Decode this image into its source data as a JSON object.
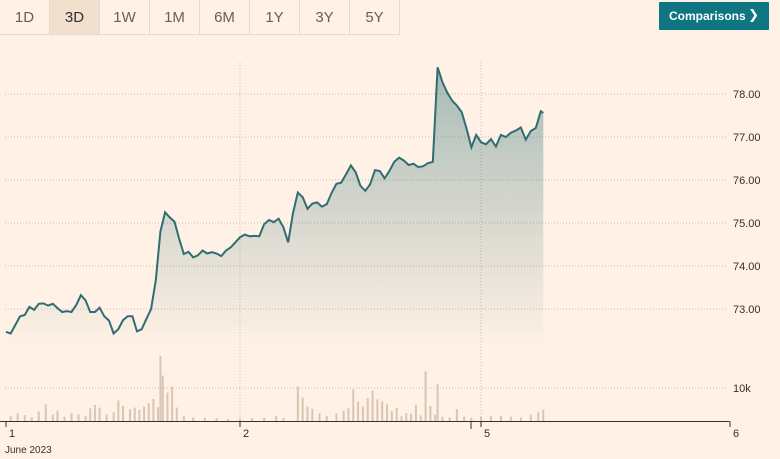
{
  "tabs": [
    {
      "label": "1D",
      "active": false
    },
    {
      "label": "3D",
      "active": true
    },
    {
      "label": "1W",
      "active": false
    },
    {
      "label": "1M",
      "active": false
    },
    {
      "label": "6M",
      "active": false
    },
    {
      "label": "1Y",
      "active": false
    },
    {
      "label": "3Y",
      "active": false
    },
    {
      "label": "5Y",
      "active": false
    }
  ],
  "comparisons_button": {
    "label": "Comparisons",
    "icon": "chevron-right-icon"
  },
  "colors": {
    "line": "#2e6e73",
    "volume": "#d8c6b2",
    "accent": "#0d7680"
  },
  "chart_data": {
    "type": "area",
    "yticks": [
      "78.00",
      "77.00",
      "76.00",
      "75.00",
      "74.00",
      "73.00"
    ],
    "ylim": [
      72.0,
      78.8
    ],
    "volume_tick": "10k",
    "xticks": [
      {
        "label": "1",
        "sublabel": "June 2023"
      },
      {
        "label": "2",
        "sublabel": ""
      },
      {
        "label": "5",
        "sublabel": ""
      },
      {
        "label": "6",
        "sublabel": ""
      }
    ],
    "price_points": [
      [
        0.0,
        72.47
      ],
      [
        0.02,
        72.43
      ],
      [
        0.04,
        72.63
      ],
      [
        0.06,
        72.83
      ],
      [
        0.08,
        72.86
      ],
      [
        0.1,
        73.05
      ],
      [
        0.12,
        72.98
      ],
      [
        0.14,
        73.12
      ],
      [
        0.16,
        73.13
      ],
      [
        0.18,
        73.08
      ],
      [
        0.2,
        73.12
      ],
      [
        0.22,
        73.02
      ],
      [
        0.24,
        72.93
      ],
      [
        0.26,
        72.95
      ],
      [
        0.28,
        72.93
      ],
      [
        0.3,
        73.09
      ],
      [
        0.32,
        73.32
      ],
      [
        0.34,
        73.2
      ],
      [
        0.36,
        72.93
      ],
      [
        0.38,
        72.93
      ],
      [
        0.4,
        73.03
      ],
      [
        0.42,
        72.83
      ],
      [
        0.44,
        72.73
      ],
      [
        0.46,
        72.43
      ],
      [
        0.48,
        72.53
      ],
      [
        0.5,
        72.74
      ],
      [
        0.52,
        72.83
      ],
      [
        0.54,
        72.83
      ],
      [
        0.56,
        72.48
      ],
      [
        0.58,
        72.53
      ],
      [
        0.6,
        72.77
      ],
      [
        0.62,
        73.0
      ],
      [
        0.64,
        73.67
      ],
      [
        0.66,
        74.8
      ],
      [
        0.68,
        75.25
      ],
      [
        0.7,
        75.13
      ],
      [
        0.72,
        75.03
      ],
      [
        0.74,
        74.63
      ],
      [
        0.76,
        74.28
      ],
      [
        0.78,
        74.33
      ],
      [
        0.8,
        74.2
      ],
      [
        0.82,
        74.25
      ],
      [
        0.84,
        74.36
      ],
      [
        0.86,
        74.29
      ],
      [
        0.88,
        74.32
      ],
      [
        0.9,
        74.29
      ],
      [
        0.92,
        74.23
      ],
      [
        0.94,
        74.36
      ],
      [
        0.96,
        74.43
      ],
      [
        0.98,
        74.55
      ],
      [
        1.0,
        74.67
      ],
      [
        1.02,
        74.73
      ],
      [
        1.04,
        74.69
      ],
      [
        1.06,
        74.7
      ],
      [
        1.08,
        74.69
      ],
      [
        1.1,
        74.97
      ],
      [
        1.12,
        75.07
      ],
      [
        1.14,
        75.02
      ],
      [
        1.16,
        75.1
      ],
      [
        1.18,
        74.9
      ],
      [
        1.2,
        74.55
      ],
      [
        1.22,
        75.23
      ],
      [
        1.24,
        75.71
      ],
      [
        1.26,
        75.6
      ],
      [
        1.28,
        75.33
      ],
      [
        1.3,
        75.45
      ],
      [
        1.32,
        75.48
      ],
      [
        1.34,
        75.38
      ],
      [
        1.36,
        75.44
      ],
      [
        1.38,
        75.7
      ],
      [
        1.4,
        75.91
      ],
      [
        1.42,
        75.94
      ],
      [
        1.44,
        76.13
      ],
      [
        1.46,
        76.34
      ],
      [
        1.48,
        76.18
      ],
      [
        1.5,
        75.86
      ],
      [
        1.52,
        75.75
      ],
      [
        1.54,
        75.9
      ],
      [
        1.56,
        76.23
      ],
      [
        1.58,
        76.21
      ],
      [
        1.6,
        76.04
      ],
      [
        1.62,
        76.21
      ],
      [
        1.64,
        76.42
      ],
      [
        1.66,
        76.52
      ],
      [
        1.68,
        76.45
      ],
      [
        1.7,
        76.35
      ],
      [
        1.72,
        76.38
      ],
      [
        1.74,
        76.3
      ],
      [
        1.76,
        76.32
      ],
      [
        1.78,
        76.39
      ],
      [
        1.8,
        76.42
      ],
      [
        1.82,
        78.62
      ],
      [
        1.84,
        78.28
      ],
      [
        1.86,
        78.03
      ],
      [
        1.88,
        77.85
      ],
      [
        1.9,
        77.73
      ],
      [
        1.92,
        77.58
      ],
      [
        1.94,
        77.2
      ],
      [
        1.96,
        76.76
      ],
      [
        1.98,
        77.05
      ],
      [
        2.0,
        76.88
      ],
      [
        2.02,
        76.83
      ],
      [
        2.04,
        76.95
      ],
      [
        2.06,
        76.78
      ],
      [
        2.08,
        77.05
      ],
      [
        2.1,
        77.0
      ],
      [
        2.12,
        77.1
      ],
      [
        2.14,
        77.15
      ],
      [
        2.16,
        77.22
      ],
      [
        2.18,
        76.94
      ],
      [
        2.2,
        77.14
      ],
      [
        2.22,
        77.21
      ],
      [
        2.24,
        77.6
      ],
      [
        2.25,
        77.56
      ]
    ],
    "x_domain": [
      0,
      3
    ],
    "volume_bars": [
      [
        0.02,
        1200
      ],
      [
        0.05,
        2000
      ],
      [
        0.08,
        1500
      ],
      [
        0.11,
        900
      ],
      [
        0.14,
        2400
      ],
      [
        0.17,
        4200
      ],
      [
        0.2,
        1600
      ],
      [
        0.22,
        2600
      ],
      [
        0.25,
        1100
      ],
      [
        0.28,
        2000
      ],
      [
        0.31,
        1700
      ],
      [
        0.34,
        1300
      ],
      [
        0.36,
        3200
      ],
      [
        0.38,
        4100
      ],
      [
        0.4,
        3400
      ],
      [
        0.43,
        1700
      ],
      [
        0.46,
        2200
      ],
      [
        0.48,
        5200
      ],
      [
        0.5,
        3800
      ],
      [
        0.53,
        3000
      ],
      [
        0.55,
        3400
      ],
      [
        0.57,
        2800
      ],
      [
        0.59,
        3700
      ],
      [
        0.61,
        4500
      ],
      [
        0.63,
        5600
      ],
      [
        0.65,
        3500
      ],
      [
        0.66,
        16500
      ],
      [
        0.67,
        11500
      ],
      [
        0.69,
        7200
      ],
      [
        0.71,
        8600
      ],
      [
        0.73,
        3400
      ],
      [
        0.76,
        1300
      ],
      [
        0.8,
        900
      ],
      [
        0.85,
        800
      ],
      [
        0.9,
        700
      ],
      [
        0.95,
        500
      ],
      [
        1.0,
        600
      ],
      [
        1.05,
        700
      ],
      [
        1.1,
        800
      ],
      [
        1.15,
        1300
      ],
      [
        1.18,
        700
      ],
      [
        1.24,
        8800
      ],
      [
        1.26,
        5900
      ],
      [
        1.28,
        3700
      ],
      [
        1.3,
        3100
      ],
      [
        1.33,
        1900
      ],
      [
        1.36,
        1300
      ],
      [
        1.4,
        1900
      ],
      [
        1.43,
        2600
      ],
      [
        1.45,
        3200
      ],
      [
        1.47,
        8000
      ],
      [
        1.49,
        4900
      ],
      [
        1.51,
        3700
      ],
      [
        1.53,
        5800
      ],
      [
        1.55,
        7700
      ],
      [
        1.57,
        5500
      ],
      [
        1.59,
        5000
      ],
      [
        1.61,
        4200
      ],
      [
        1.63,
        2500
      ],
      [
        1.65,
        3300
      ],
      [
        1.67,
        1200
      ],
      [
        1.69,
        2000
      ],
      [
        1.71,
        1800
      ],
      [
        1.73,
        4100
      ],
      [
        1.75,
        1400
      ],
      [
        1.77,
        12600
      ],
      [
        1.79,
        3800
      ],
      [
        1.81,
        1600
      ],
      [
        1.82,
        9300
      ],
      [
        1.84,
        1100
      ],
      [
        1.87,
        900
      ],
      [
        1.9,
        3000
      ],
      [
        1.93,
        1100
      ],
      [
        1.96,
        800
      ],
      [
        2.0,
        1000
      ],
      [
        2.04,
        1200
      ],
      [
        2.08,
        1300
      ],
      [
        2.12,
        1100
      ],
      [
        2.16,
        900
      ],
      [
        2.2,
        1600
      ],
      [
        2.23,
        2300
      ],
      [
        2.25,
        2900
      ]
    ],
    "volume_max": 18000
  }
}
